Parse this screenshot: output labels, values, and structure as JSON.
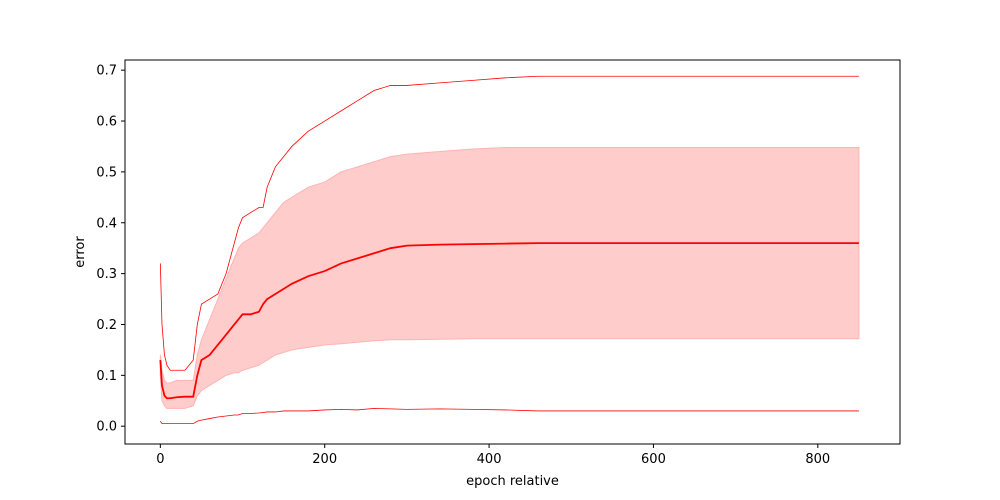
{
  "chart_data": {
    "type": "line",
    "title": "",
    "xlabel": "epoch relative",
    "ylabel": "error",
    "xlim": [
      -43,
      900
    ],
    "ylim": [
      -0.035,
      0.72
    ],
    "grid": false,
    "legend": "none",
    "x_ticks": [
      0,
      200,
      400,
      600,
      800
    ],
    "x_tick_labels": [
      "0",
      "200",
      "400",
      "600",
      "800"
    ],
    "y_ticks": [
      0.0,
      0.1,
      0.2,
      0.3,
      0.4,
      0.5,
      0.6,
      0.7
    ],
    "y_tick_labels": [
      "0.0",
      "0.1",
      "0.2",
      "0.3",
      "0.4",
      "0.5",
      "0.6",
      "0.7"
    ],
    "colors": {
      "line": "#ff0000",
      "band_fill": "#ff9999",
      "band_edge": "#ffb3b3",
      "axes": "#000000"
    },
    "x": [
      0,
      2,
      5,
      8,
      12,
      20,
      30,
      40,
      45,
      50,
      60,
      70,
      80,
      90,
      95,
      100,
      110,
      120,
      125,
      130,
      140,
      150,
      160,
      180,
      200,
      220,
      240,
      260,
      280,
      300,
      340,
      380,
      420,
      460,
      500,
      600,
      700,
      850
    ],
    "series": [
      {
        "role": "max",
        "values": [
          0.32,
          0.2,
          0.14,
          0.12,
          0.11,
          0.11,
          0.11,
          0.13,
          0.2,
          0.24,
          0.25,
          0.26,
          0.3,
          0.36,
          0.39,
          0.41,
          0.42,
          0.43,
          0.43,
          0.47,
          0.51,
          0.53,
          0.55,
          0.58,
          0.6,
          0.62,
          0.64,
          0.66,
          0.67,
          0.67,
          0.675,
          0.68,
          0.685,
          0.688,
          0.688,
          0.688,
          0.688,
          0.688
        ]
      },
      {
        "role": "upper",
        "values": [
          0.14,
          0.11,
          0.09,
          0.085,
          0.085,
          0.09,
          0.09,
          0.09,
          0.14,
          0.17,
          0.21,
          0.25,
          0.29,
          0.33,
          0.35,
          0.36,
          0.37,
          0.38,
          0.39,
          0.4,
          0.42,
          0.44,
          0.45,
          0.47,
          0.48,
          0.5,
          0.51,
          0.52,
          0.53,
          0.535,
          0.54,
          0.545,
          0.548,
          0.548,
          0.548,
          0.548,
          0.548,
          0.548
        ]
      },
      {
        "role": "mean",
        "values": [
          0.13,
          0.08,
          0.06,
          0.055,
          0.055,
          0.057,
          0.058,
          0.058,
          0.1,
          0.13,
          0.14,
          0.16,
          0.18,
          0.2,
          0.21,
          0.22,
          0.22,
          0.225,
          0.24,
          0.25,
          0.26,
          0.27,
          0.28,
          0.295,
          0.305,
          0.32,
          0.33,
          0.34,
          0.35,
          0.355,
          0.357,
          0.358,
          0.359,
          0.36,
          0.36,
          0.36,
          0.36,
          0.36
        ]
      },
      {
        "role": "lower",
        "values": [
          0.1,
          0.05,
          0.04,
          0.035,
          0.035,
          0.035,
          0.035,
          0.04,
          0.06,
          0.07,
          0.08,
          0.09,
          0.1,
          0.105,
          0.105,
          0.11,
          0.115,
          0.12,
          0.125,
          0.13,
          0.14,
          0.145,
          0.15,
          0.155,
          0.16,
          0.162,
          0.165,
          0.168,
          0.17,
          0.17,
          0.171,
          0.172,
          0.172,
          0.172,
          0.172,
          0.172,
          0.172,
          0.172
        ]
      },
      {
        "role": "min",
        "values": [
          0.01,
          0.005,
          0.005,
          0.005,
          0.005,
          0.005,
          0.005,
          0.005,
          0.01,
          0.012,
          0.015,
          0.018,
          0.02,
          0.022,
          0.022,
          0.025,
          0.025,
          0.026,
          0.027,
          0.028,
          0.028,
          0.03,
          0.03,
          0.03,
          0.032,
          0.033,
          0.032,
          0.035,
          0.034,
          0.033,
          0.034,
          0.033,
          0.032,
          0.03,
          0.03,
          0.03,
          0.03,
          0.03
        ]
      }
    ]
  }
}
